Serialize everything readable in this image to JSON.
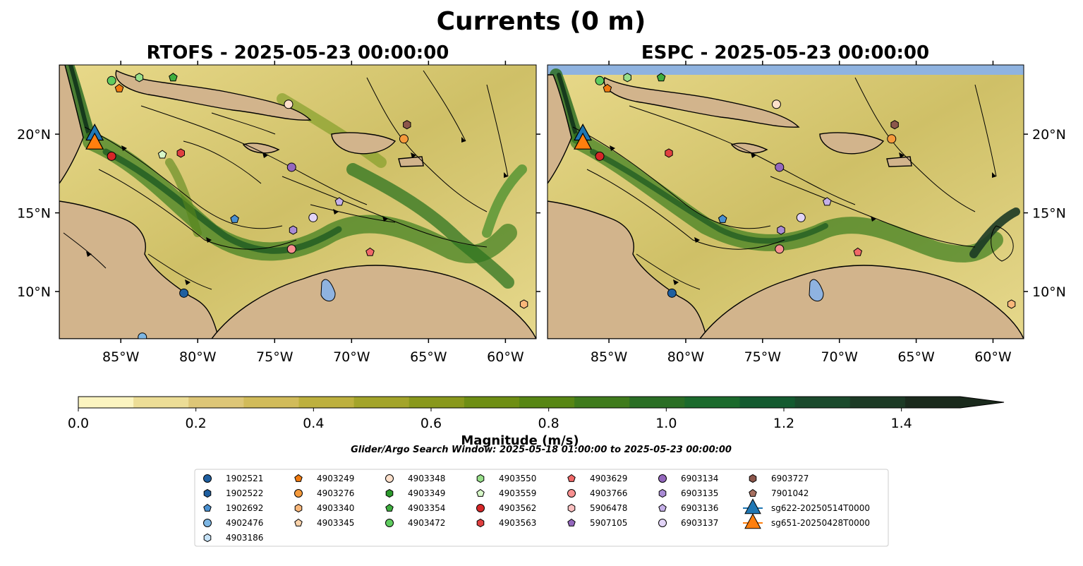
{
  "title": "Currents (0 m)",
  "panels": [
    {
      "title": "RTOFS - 2025-05-23 00:00:00"
    },
    {
      "title": "ESPC - 2025-05-23 00:00:00"
    }
  ],
  "axes": {
    "lon_ticks": [
      "85°W",
      "80°W",
      "75°W",
      "70°W",
      "65°W",
      "60°W"
    ],
    "lat_ticks": [
      "20°N",
      "15°N",
      "10°N"
    ]
  },
  "colorbar": {
    "label": "Magnitude (m/s)",
    "ticks": [
      "0.0",
      "0.2",
      "0.4",
      "0.6",
      "0.8",
      "1.0",
      "1.2",
      "1.4"
    ],
    "range": [
      0,
      1.5
    ],
    "colors": [
      "#fbf4c0",
      "#ecdd96",
      "#ddc677",
      "#d1bb5a",
      "#bdb03e",
      "#a3a42a",
      "#89981c",
      "#6e8e14",
      "#578614",
      "#3f7b1c",
      "#2a6e24",
      "#1b6a2c",
      "#135a2f",
      "#1a4a2c",
      "#1c3a25",
      "#1a2a1c"
    ]
  },
  "subtitle": "Glider/Argo Search Window: 2025-05-18 01:00:00 to 2025-05-23 00:00:00",
  "legend": {
    "columns": [
      [
        {
          "label": "1902521",
          "marker": "circle",
          "color": "#1f5fa0"
        },
        {
          "label": "1902522",
          "marker": "hexagon",
          "color": "#1f5fa0"
        },
        {
          "label": "1902692",
          "marker": "pentagon",
          "color": "#4a90d0"
        },
        {
          "label": "4902476",
          "marker": "circle",
          "color": "#7db6e3"
        },
        {
          "label": "4903186",
          "marker": "hexagon",
          "color": "#c5e2f7"
        }
      ],
      [
        {
          "label": "4903249",
          "marker": "pentagon",
          "color": "#f07a10"
        },
        {
          "label": "4903276",
          "marker": "circle",
          "color": "#f59a3c"
        },
        {
          "label": "4903340",
          "marker": "hexagon",
          "color": "#f9b77a"
        },
        {
          "label": "4903345",
          "marker": "pentagon",
          "color": "#fcd3aa"
        }
      ],
      [
        {
          "label": "4903348",
          "marker": "circle",
          "color": "#fde0cb"
        },
        {
          "label": "4903349",
          "marker": "hexagon",
          "color": "#2c9a2c"
        },
        {
          "label": "4903354",
          "marker": "pentagon",
          "color": "#3fae3f"
        },
        {
          "label": "4903472",
          "marker": "circle",
          "color": "#5fcc5f"
        }
      ],
      [
        {
          "label": "4903550",
          "marker": "hexagon",
          "color": "#98df8a"
        },
        {
          "label": "4903559",
          "marker": "pentagon",
          "color": "#d7f7c8"
        },
        {
          "label": "4903562",
          "marker": "circle",
          "color": "#d62728"
        },
        {
          "label": "4903563",
          "marker": "hexagon",
          "color": "#e04040"
        }
      ],
      [
        {
          "label": "4903629",
          "marker": "pentagon",
          "color": "#f06868"
        },
        {
          "label": "4903766",
          "marker": "circle",
          "color": "#f89090"
        },
        {
          "label": "5906478",
          "marker": "hexagon",
          "color": "#fbc0c0"
        },
        {
          "label": "5907105",
          "marker": "pentagon",
          "color": "#9467bd"
        }
      ],
      [
        {
          "label": "6903134",
          "marker": "circle",
          "color": "#9467bd"
        },
        {
          "label": "6903135",
          "marker": "hexagon",
          "color": "#a98bd4"
        },
        {
          "label": "6903136",
          "marker": "pentagon",
          "color": "#c5b0e8"
        },
        {
          "label": "6903137",
          "marker": "circle",
          "color": "#e2d4f7"
        }
      ],
      [
        {
          "label": "6903727",
          "marker": "hexagon",
          "color": "#8c564b"
        },
        {
          "label": "7901042",
          "marker": "pentagon",
          "color": "#a77060"
        },
        {
          "label": "sg622-20250514T0000",
          "marker": "triangle",
          "color": "#1f77b4"
        },
        {
          "label": "sg651-20250428T0000",
          "marker": "triangle",
          "color": "#ff7f0e"
        }
      ]
    ]
  },
  "chart_data": [
    {
      "type": "map",
      "title": "RTOFS - 2025-05-23 00:00:00",
      "xlabel": "",
      "ylabel": "",
      "lon_range": [
        -89,
        -58
      ],
      "lat_range": [
        7,
        24.4
      ],
      "gliders": [
        {
          "id": "sg622-20250514T0000",
          "lon": -86.7,
          "lat": 20.0
        },
        {
          "id": "sg651-20250428T0000",
          "lon": -86.7,
          "lat": 19.7
        }
      ],
      "floats": [
        {
          "id": "1902521",
          "lon": -80.9,
          "lat": 9.9
        },
        {
          "id": "1902692",
          "lon": -77.6,
          "lat": 14.6
        },
        {
          "id": "4902476",
          "lon": -83.6,
          "lat": 7.1
        },
        {
          "id": "4903249",
          "lon": -85.1,
          "lat": 22.9
        },
        {
          "id": "4903276",
          "lon": -66.6,
          "lat": 19.7
        },
        {
          "id": "4903348",
          "lon": -74.1,
          "lat": 21.9
        },
        {
          "id": "4903354",
          "lon": -81.6,
          "lat": 23.6
        },
        {
          "id": "4903472",
          "lon": -85.6,
          "lat": 23.4
        },
        {
          "id": "4903550",
          "lon": -83.8,
          "lat": 23.6
        },
        {
          "id": "4903559",
          "lon": -82.3,
          "lat": 18.7
        },
        {
          "id": "4903562",
          "lon": -85.6,
          "lat": 18.6
        },
        {
          "id": "4903563",
          "lon": -81.1,
          "lat": 18.8
        },
        {
          "id": "4903629",
          "lon": -68.8,
          "lat": 12.5
        },
        {
          "id": "4903766",
          "lon": -73.9,
          "lat": 12.7
        },
        {
          "id": "6903134",
          "lon": -73.9,
          "lat": 17.9
        },
        {
          "id": "6903135",
          "lon": -73.8,
          "lat": 13.9
        },
        {
          "id": "6903136",
          "lon": -70.8,
          "lat": 15.7
        },
        {
          "id": "6903137",
          "lon": -72.5,
          "lat": 14.7
        },
        {
          "id": "6903727",
          "lon": -66.4,
          "lat": 20.6
        },
        {
          "id": "4903340",
          "lon": -58.8,
          "lat": 9.2
        }
      ]
    },
    {
      "type": "map",
      "title": "ESPC - 2025-05-23 00:00:00",
      "xlabel": "",
      "ylabel": "",
      "lon_range": [
        -89,
        -58
      ],
      "lat_range": [
        7,
        24.4
      ],
      "gliders": [
        {
          "id": "sg622-20250514T0000",
          "lon": -86.7,
          "lat": 20.0
        },
        {
          "id": "sg651-20250428T0000",
          "lon": -86.7,
          "lat": 19.7
        }
      ],
      "floats": [
        {
          "id": "1902521",
          "lon": -80.9,
          "lat": 9.9
        },
        {
          "id": "1902692",
          "lon": -77.6,
          "lat": 14.6
        },
        {
          "id": "4903249",
          "lon": -85.1,
          "lat": 22.9
        },
        {
          "id": "4903276",
          "lon": -66.6,
          "lat": 19.7
        },
        {
          "id": "4903348",
          "lon": -74.1,
          "lat": 21.9
        },
        {
          "id": "4903354",
          "lon": -81.6,
          "lat": 23.6
        },
        {
          "id": "4903472",
          "lon": -85.6,
          "lat": 23.4
        },
        {
          "id": "4903550",
          "lon": -83.8,
          "lat": 23.6
        },
        {
          "id": "4903562",
          "lon": -85.6,
          "lat": 18.6
        },
        {
          "id": "4903563",
          "lon": -81.1,
          "lat": 18.8
        },
        {
          "id": "4903629",
          "lon": -68.8,
          "lat": 12.5
        },
        {
          "id": "4903766",
          "lon": -73.9,
          "lat": 12.7
        },
        {
          "id": "6903134",
          "lon": -73.9,
          "lat": 17.9
        },
        {
          "id": "6903135",
          "lon": -73.8,
          "lat": 13.9
        },
        {
          "id": "6903136",
          "lon": -70.8,
          "lat": 15.7
        },
        {
          "id": "6903137",
          "lon": -72.5,
          "lat": 14.7
        },
        {
          "id": "6903727",
          "lon": -66.4,
          "lat": 20.6
        },
        {
          "id": "4903340",
          "lon": -58.8,
          "lat": 9.2
        }
      ]
    }
  ]
}
